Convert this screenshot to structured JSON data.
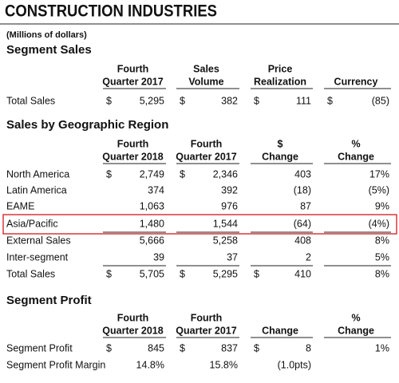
{
  "title": "CONSTRUCTION INDUSTRIES",
  "subtitle": "(Millions of dollars)",
  "sections": [
    {
      "title": "Segment Sales",
      "headers": [
        [
          "Fourth",
          "Quarter 2017"
        ],
        [
          "Sales",
          "Volume"
        ],
        [
          "Price",
          "Realization"
        ],
        [
          "Currency"
        ]
      ],
      "rows": [
        {
          "label": "Total Sales",
          "cells": [
            {
              "sign": "$",
              "value": "5,295"
            },
            {
              "sign": "$",
              "value": "382"
            },
            {
              "sign": "$",
              "value": "111"
            },
            {
              "sign": "$",
              "value": "(85)"
            }
          ]
        }
      ]
    },
    {
      "title": "Sales by Geographic Region",
      "headers": [
        [
          "Fourth",
          "Quarter 2018"
        ],
        [
          "Fourth",
          "Quarter 2017"
        ],
        [
          "$",
          "Change"
        ],
        [
          "%",
          "Change"
        ]
      ],
      "rows": [
        {
          "label": "North America",
          "cells": [
            {
              "sign": "$",
              "value": "2,749"
            },
            {
              "sign": "$",
              "value": "2,346"
            },
            "403",
            "17%"
          ]
        },
        {
          "label": "Latin America",
          "cells": [
            "374",
            "392",
            "(18)",
            "(5%)"
          ]
        },
        {
          "label": "EAME",
          "cells": [
            "1,063",
            "976",
            "87",
            "9%"
          ]
        },
        {
          "label": "Asia/Pacific",
          "cells": [
            "1,480",
            "1,544",
            "(64)",
            "(4%)"
          ]
        },
        {
          "label": "External Sales",
          "cells": [
            "5,666",
            "5,258",
            "408",
            "8%"
          ]
        },
        {
          "label": "Inter-segment",
          "cells": [
            "39",
            "37",
            "2",
            "5%"
          ]
        },
        {
          "label": "Total Sales",
          "cells": [
            {
              "sign": "$",
              "value": "5,705"
            },
            {
              "sign": "$",
              "value": "5,295"
            },
            {
              "sign": "$",
              "value": "410"
            },
            "8%"
          ]
        }
      ]
    },
    {
      "title": "Segment Profit",
      "headers": [
        [
          "Fourth",
          "Quarter 2018"
        ],
        [
          "Fourth",
          "Quarter 2017"
        ],
        [
          "Change"
        ],
        [
          "%",
          "Change"
        ]
      ],
      "rows": [
        {
          "label": "Segment Profit",
          "cells": [
            {
              "sign": "$",
              "value": "845"
            },
            {
              "sign": "$",
              "value": "837"
            },
            {
              "sign": "$",
              "value": "8"
            },
            "1%"
          ]
        },
        {
          "label": "Segment Profit Margin",
          "cells": [
            "14.8%",
            "15.8%",
            "(1.0pts)"
          ]
        }
      ]
    }
  ]
}
